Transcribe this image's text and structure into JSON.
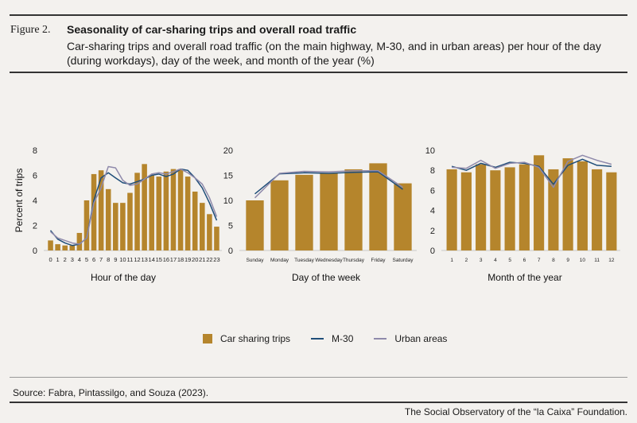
{
  "figure_label": "Figure 2.",
  "title": "Seasonality of car-sharing trips and overall road traffic",
  "subtitle": "Car-sharing trips and overall road traffic (on the main highway, M-30, and in urban areas) per hour of the day (during workdays), day of the week, and month of the year (%)",
  "source": "Source: Fabra, Pintassilgo, and Souza (2023).",
  "footer": "The Social Observatory of the “la Caixa” Foundation.",
  "colors": {
    "bar": "#b5852c",
    "m30": "#1f4e79",
    "urban": "#8f8aab"
  },
  "legend": {
    "bars": "Car sharing trips",
    "m30": "M-30",
    "urban": "Urban areas"
  },
  "chart_data": [
    {
      "type": "bar",
      "xlabel": "Hour of the day",
      "ylabel": "Percent of trips",
      "ylim": [
        0,
        8
      ],
      "yticks": [
        "0",
        "2",
        "4",
        "6",
        "8"
      ],
      "categories": [
        "0",
        "1",
        "2",
        "3",
        "4",
        "5",
        "6",
        "7",
        "8",
        "9",
        "10",
        "11",
        "12",
        "13",
        "14",
        "15",
        "16",
        "17",
        "18",
        "19",
        "20",
        "21",
        "22",
        "23"
      ],
      "series": [
        {
          "name": "Car sharing trips",
          "kind": "bar",
          "values": [
            0.8,
            0.5,
            0.4,
            0.4,
            1.4,
            4.0,
            6.1,
            6.4,
            4.9,
            3.8,
            3.8,
            4.6,
            6.2,
            6.9,
            6.0,
            5.9,
            6.3,
            6.5,
            6.5,
            5.9,
            4.7,
            3.8,
            2.9,
            1.9
          ]
        },
        {
          "name": "M-30",
          "kind": "line",
          "values": [
            1.6,
            0.9,
            0.6,
            0.4,
            0.5,
            1.0,
            4.0,
            5.8,
            6.2,
            5.8,
            5.4,
            5.3,
            5.5,
            5.7,
            6.0,
            6.1,
            5.9,
            6.1,
            6.5,
            6.4,
            5.8,
            5.0,
            3.8,
            2.4
          ]
        },
        {
          "name": "Urban areas",
          "kind": "line",
          "values": [
            1.5,
            1.0,
            0.8,
            0.6,
            0.5,
            1.0,
            3.8,
            5.0,
            6.7,
            6.6,
            5.6,
            5.2,
            5.3,
            5.7,
            6.1,
            6.2,
            6.1,
            6.3,
            6.5,
            6.2,
            5.8,
            5.3,
            4.2,
            2.7
          ]
        }
      ]
    },
    {
      "type": "bar",
      "xlabel": "Day of the week",
      "ylabel": "",
      "ylim": [
        0,
        20
      ],
      "yticks": [
        "0",
        "5",
        "10",
        "15",
        "20"
      ],
      "categories": [
        "Sunday",
        "Monday",
        "Tuesday",
        "Wednesday",
        "Thursday",
        "Friday",
        "Saturday"
      ],
      "series": [
        {
          "name": "Car sharing trips",
          "kind": "bar",
          "values": [
            10.0,
            14.0,
            15.1,
            15.4,
            16.2,
            17.4,
            13.4
          ]
        },
        {
          "name": "M-30",
          "kind": "line",
          "values": [
            11.3,
            15.3,
            15.5,
            15.4,
            15.6,
            15.7,
            12.2
          ]
        },
        {
          "name": "Urban areas",
          "kind": "line",
          "values": [
            10.5,
            15.4,
            15.8,
            15.7,
            15.9,
            15.9,
            12.6
          ]
        }
      ]
    },
    {
      "type": "bar",
      "xlabel": "Month of the year",
      "ylabel": "",
      "ylim": [
        0,
        10
      ],
      "yticks": [
        "0",
        "2",
        "4",
        "6",
        "8",
        "10"
      ],
      "categories": [
        "1",
        "2",
        "3",
        "4",
        "5",
        "6",
        "7",
        "8",
        "9",
        "10",
        "11",
        "12"
      ],
      "series": [
        {
          "name": "Car sharing trips",
          "kind": "bar",
          "values": [
            8.1,
            7.8,
            8.6,
            8.0,
            8.3,
            8.6,
            9.5,
            8.1,
            9.2,
            8.9,
            8.1,
            7.8
          ]
        },
        {
          "name": "M-30",
          "kind": "line",
          "values": [
            8.4,
            8.0,
            8.7,
            8.3,
            8.8,
            8.7,
            8.4,
            6.6,
            8.5,
            9.1,
            8.5,
            8.4
          ]
        },
        {
          "name": "Urban areas",
          "kind": "line",
          "values": [
            8.3,
            8.2,
            9.0,
            8.2,
            8.7,
            8.8,
            8.3,
            6.3,
            8.9,
            9.5,
            9.0,
            8.6
          ]
        }
      ]
    }
  ]
}
